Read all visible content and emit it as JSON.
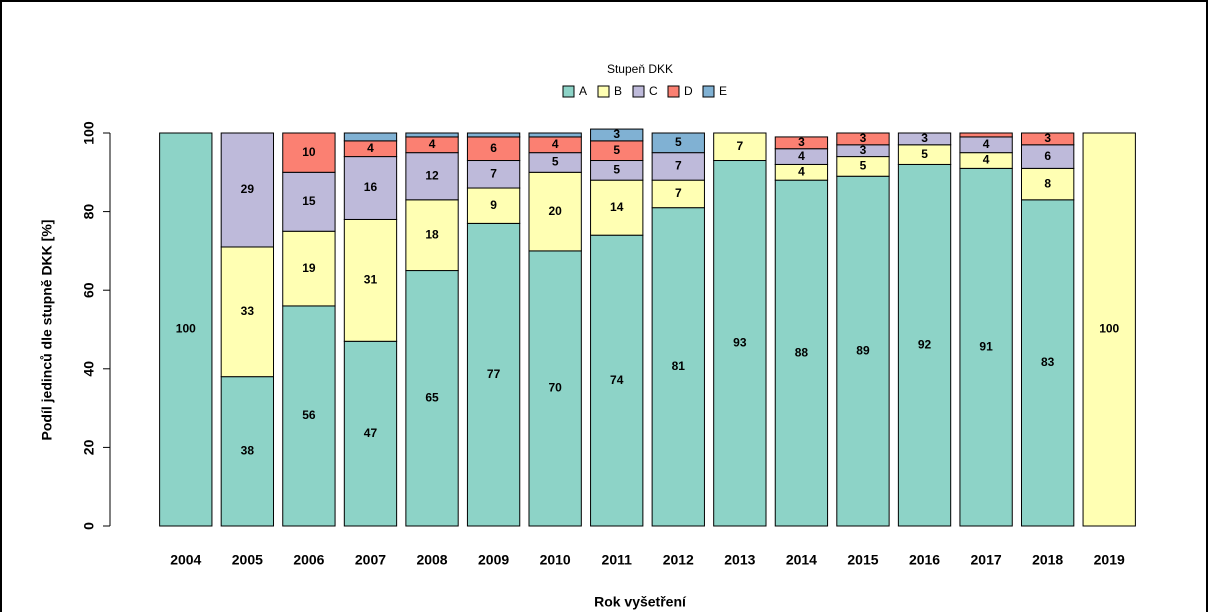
{
  "chart_data": {
    "type": "stacked-bar",
    "x_label": "Rok vyšetření",
    "y_label": "Podíl jedinců dle stupně DKK [%]",
    "legend_title": "Stupeň DKK",
    "categories": [
      "2004",
      "2005",
      "2006",
      "2007",
      "2008",
      "2009",
      "2010",
      "2011",
      "2012",
      "2013",
      "2014",
      "2015",
      "2016",
      "2017",
      "2018",
      "2019"
    ],
    "ylim": [
      0,
      100
    ],
    "yticks": [
      0,
      20,
      40,
      60,
      80,
      100
    ],
    "series": [
      {
        "name": "A",
        "color": "#8dd3c7",
        "values": [
          100,
          38,
          56,
          47,
          65,
          77,
          70,
          74,
          81,
          93,
          88,
          89,
          92,
          91,
          83,
          null
        ],
        "value_labels": [
          "100",
          "38",
          "56",
          "47",
          "65",
          "77",
          "70",
          "74",
          "81",
          "93",
          "88",
          "89",
          "92",
          "91",
          "83",
          null
        ]
      },
      {
        "name": "B",
        "color": "#ffffb3",
        "values": [
          null,
          33,
          19,
          31,
          18,
          9,
          20,
          14,
          7,
          7,
          4,
          5,
          5,
          4,
          8,
          100
        ],
        "value_labels": [
          null,
          "33",
          "19",
          "31",
          "18",
          "9",
          "20",
          "14",
          "7",
          "7",
          "4",
          "5",
          "5",
          "4",
          "8",
          "100"
        ]
      },
      {
        "name": "C",
        "color": "#bebada",
        "values": [
          null,
          29,
          15,
          16,
          12,
          7,
          5,
          5,
          7,
          null,
          4,
          3,
          3,
          4,
          6,
          null
        ],
        "value_labels": [
          null,
          "29",
          "15",
          "16",
          "12",
          "7",
          "5",
          "5",
          "7",
          null,
          "4",
          "3",
          "3",
          "4",
          "6",
          null
        ]
      },
      {
        "name": "D",
        "color": "#fb8072",
        "values": [
          null,
          null,
          10,
          4,
          4,
          6,
          4,
          5,
          null,
          null,
          3,
          3,
          null,
          1,
          3,
          null
        ],
        "value_labels": [
          null,
          null,
          "10",
          "4",
          "4",
          "6",
          "4",
          "5",
          null,
          null,
          "3",
          "3",
          null,
          null,
          "3",
          null
        ]
      },
      {
        "name": "E",
        "color": "#80b1d3",
        "values": [
          null,
          null,
          null,
          2,
          1,
          1,
          1,
          3,
          5,
          null,
          null,
          null,
          null,
          null,
          null,
          null
        ],
        "value_labels": [
          null,
          null,
          null,
          null,
          null,
          null,
          null,
          "3",
          "5",
          null,
          null,
          null,
          null,
          null,
          null,
          null
        ]
      }
    ]
  }
}
